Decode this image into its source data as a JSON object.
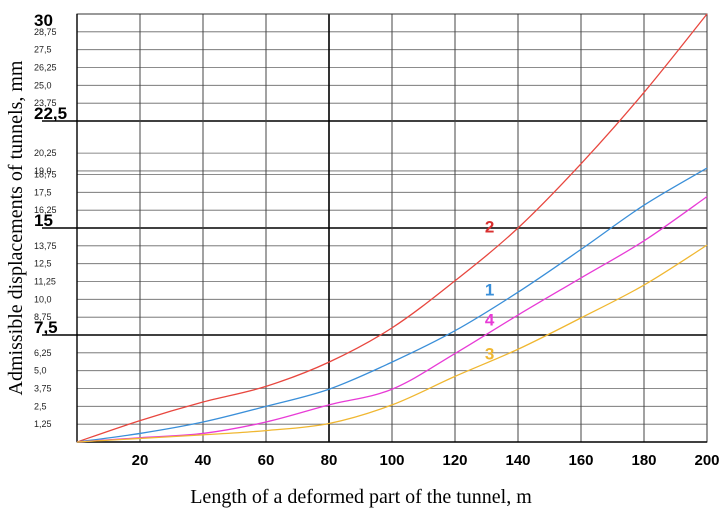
{
  "chart_data": {
    "type": "line",
    "xlabel": "Length of a deformed part of the tunnel, m",
    "ylabel": "Admissible displacements of tunnels, mm",
    "xlim": [
      0,
      200
    ],
    "ylim": [
      0,
      30
    ],
    "x_ticks": [
      20,
      40,
      60,
      80,
      100,
      120,
      140,
      160,
      180,
      200
    ],
    "x_tick_labels": [
      "20",
      "40",
      "60",
      "80",
      "100",
      "120",
      "140",
      "160",
      "180",
      "200"
    ],
    "y_minor_ticks": [
      1.25,
      2.5,
      3.75,
      5.0,
      6.25,
      8.75,
      10.0,
      11.25,
      12.5,
      13.75,
      16.25,
      17.5,
      18.75,
      19.0,
      20.25,
      23.75,
      25.0,
      26.25,
      27.5,
      28.75
    ],
    "y_minor_tick_labels": [
      "1,25",
      "2,5",
      "3,75",
      "5,0",
      "6,25",
      "8,75",
      "10,0",
      "11,25",
      "12,5",
      "13,75",
      "16,25",
      "17,5",
      "18,75",
      "19,0",
      "20,25",
      "23,75",
      "25,0",
      "26,25",
      "27,5",
      "28,75"
    ],
    "y_major_ticks": [
      7.5,
      15,
      22.5,
      30
    ],
    "y_major_tick_labels": [
      "7,5",
      "15",
      "22,5",
      "30"
    ],
    "grid": true,
    "series": [
      {
        "name": "2",
        "color": "#e8473f",
        "x": [
          0,
          20,
          40,
          60,
          80,
          100,
          120,
          140,
          160,
          180,
          200
        ],
        "y": [
          0,
          1.5,
          2.8,
          3.9,
          5.6,
          8.0,
          11.3,
          15.0,
          19.5,
          24.5,
          30.0
        ]
      },
      {
        "name": "1",
        "color": "#3a8fd9",
        "x": [
          0,
          20,
          40,
          60,
          80,
          100,
          120,
          140,
          160,
          180,
          200
        ],
        "y": [
          0,
          0.6,
          1.4,
          2.5,
          3.7,
          5.6,
          7.8,
          10.5,
          13.5,
          16.6,
          19.2
        ]
      },
      {
        "name": "4",
        "color": "#e83bd6",
        "x": [
          0,
          20,
          40,
          60,
          80,
          100,
          120,
          140,
          160,
          180,
          200
        ],
        "y": [
          0,
          0.3,
          0.6,
          1.4,
          2.6,
          3.7,
          6.2,
          8.9,
          11.5,
          14.1,
          17.2
        ]
      },
      {
        "name": "3",
        "color": "#f0b731",
        "x": [
          0,
          20,
          40,
          60,
          80,
          100,
          120,
          140,
          160,
          180,
          200
        ],
        "y": [
          0,
          0.25,
          0.5,
          0.8,
          1.3,
          2.6,
          4.6,
          6.5,
          8.7,
          11.0,
          13.8
        ]
      }
    ],
    "annotations": [
      {
        "text": "2",
        "x": 131,
        "y": 15.1,
        "color": "#d93030"
      },
      {
        "text": "1",
        "x": 131,
        "y": 10.7,
        "color": "#3a8fd9"
      },
      {
        "text": "4",
        "x": 131,
        "y": 8.6,
        "color": "#e83bd6"
      },
      {
        "text": "3",
        "x": 131,
        "y": 6.2,
        "color": "#f0b731"
      }
    ]
  }
}
